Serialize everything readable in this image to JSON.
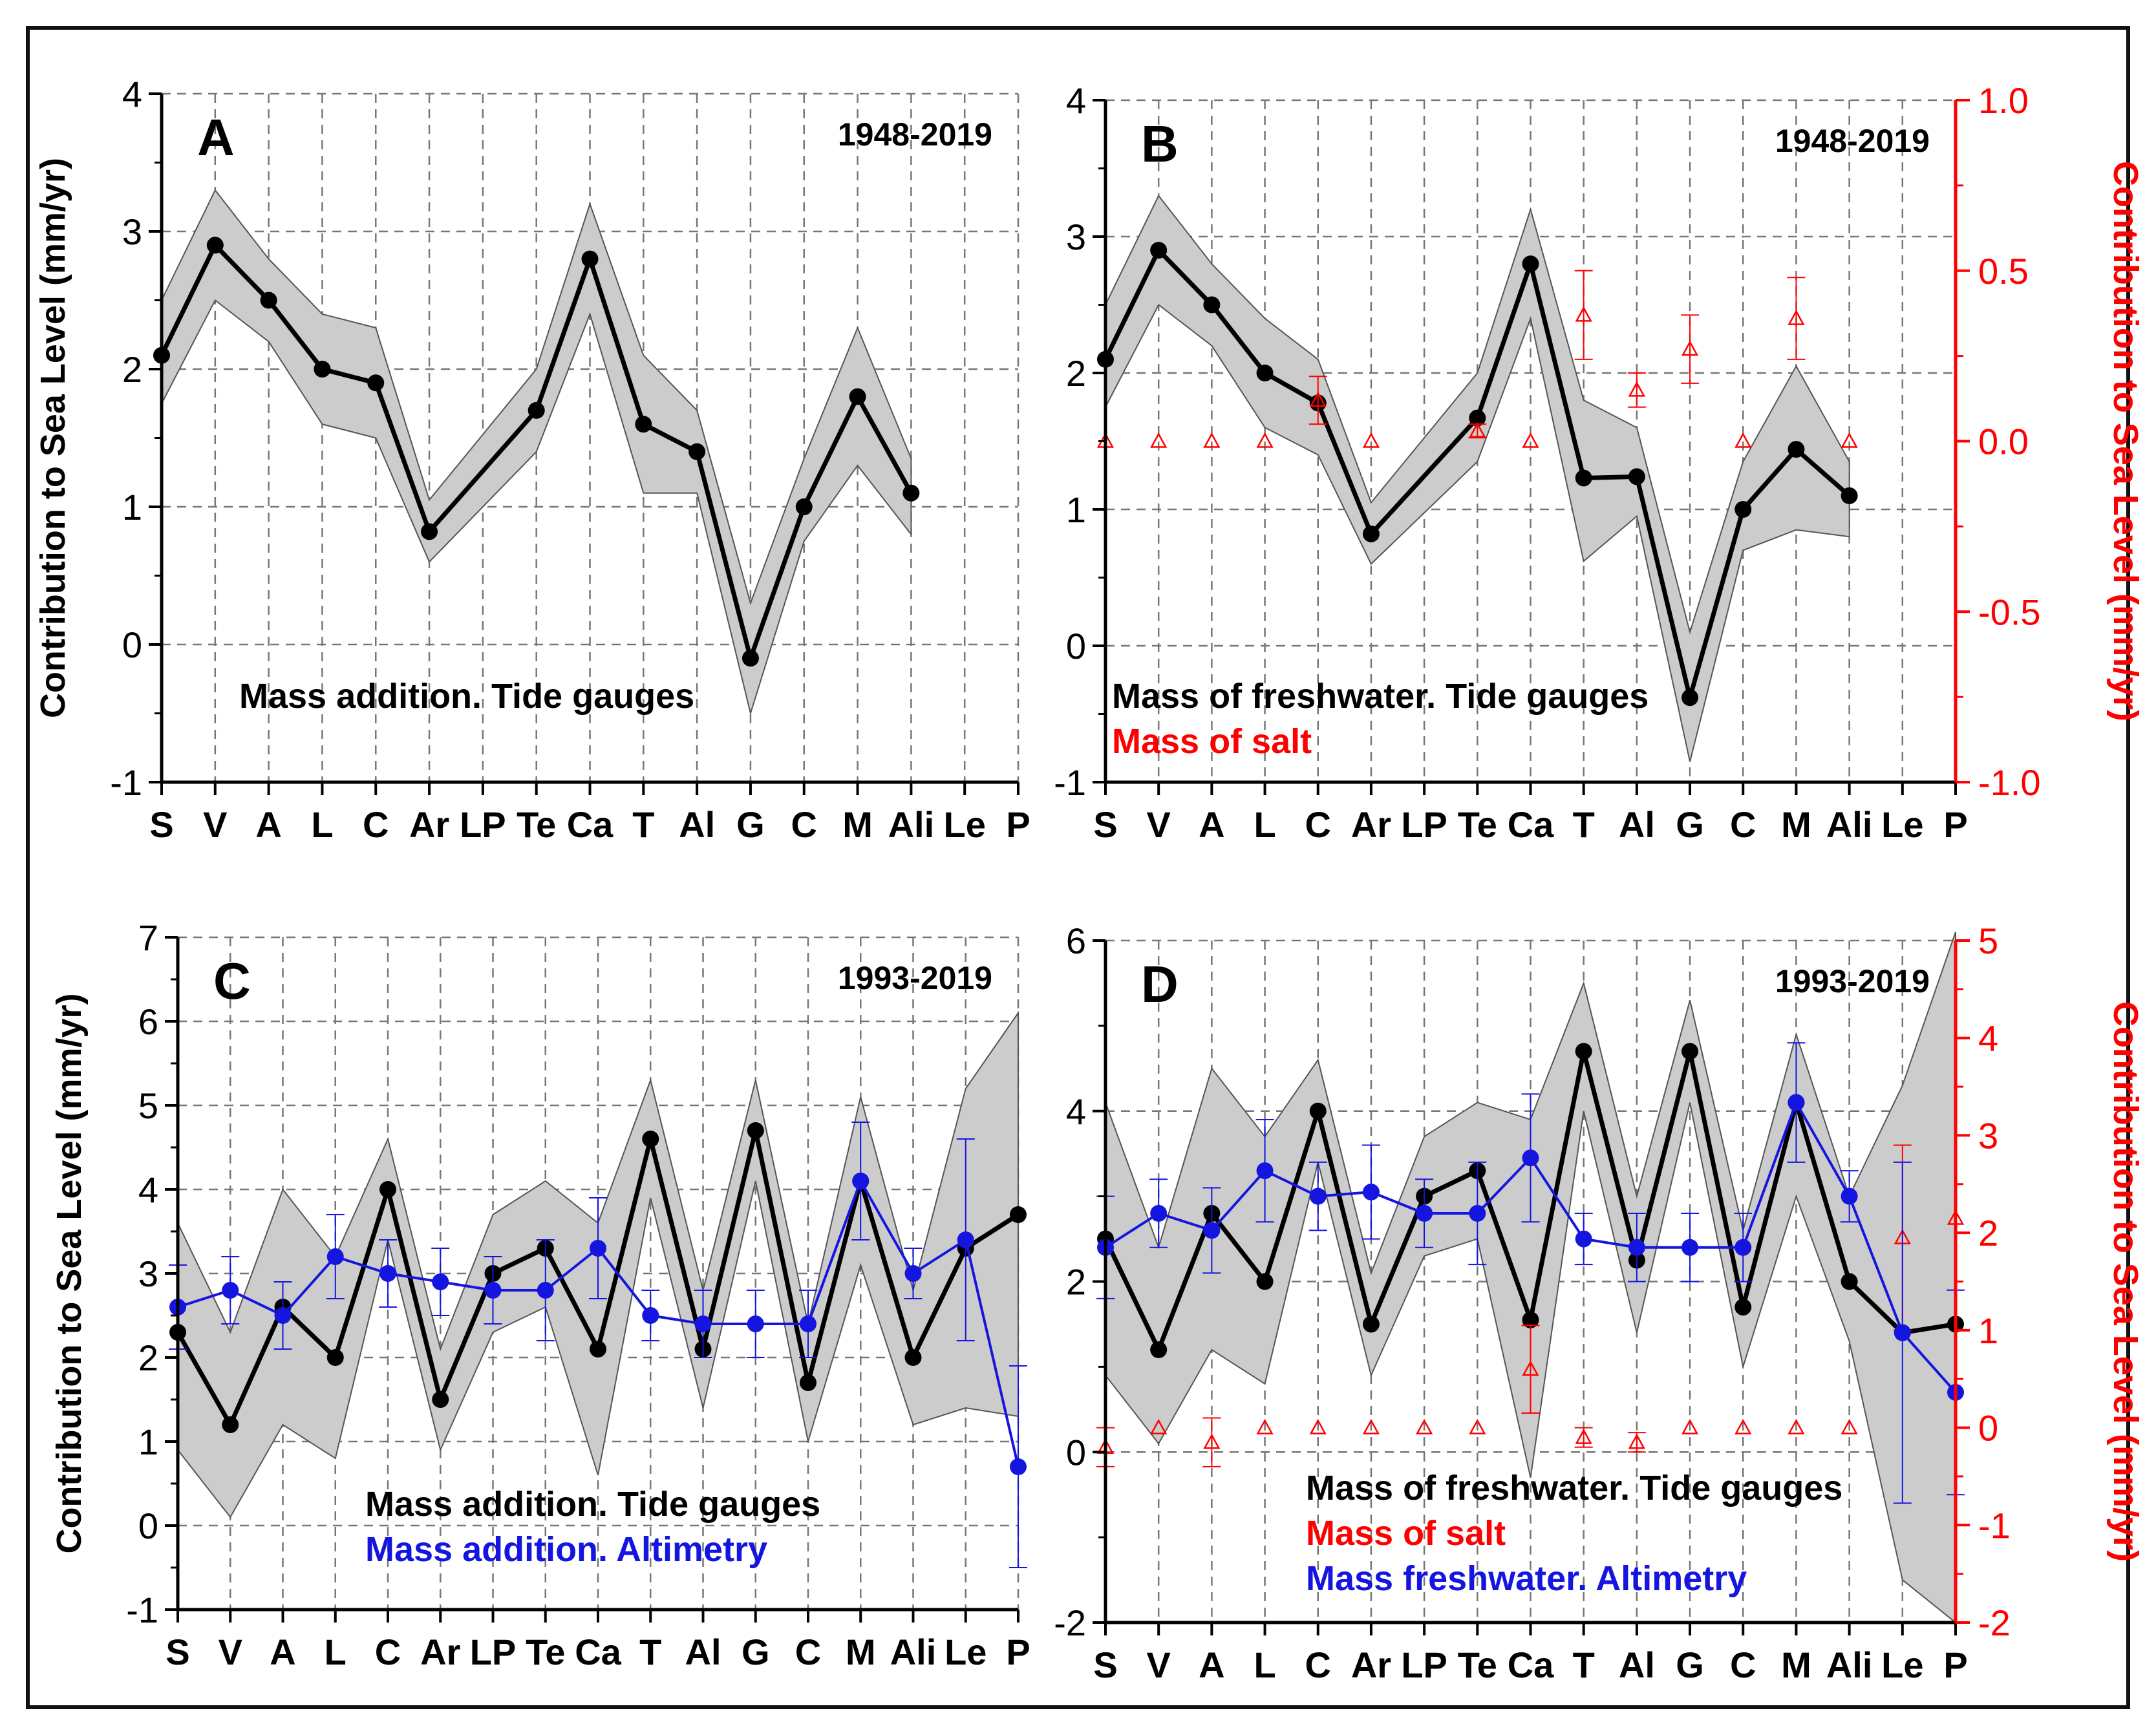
{
  "categories": [
    "S",
    "V",
    "A",
    "L",
    "C",
    "Ar",
    "LP",
    "Te",
    "Ca",
    "T",
    "Al",
    "G",
    "C",
    "M",
    "Ali",
    "Le",
    "P"
  ],
  "colors": {
    "black": "#000000",
    "red": "#ff0000",
    "blue": "#1515e0",
    "band": "#cccccc",
    "grid": "#777777"
  },
  "chart_data": [
    {
      "id": "A",
      "type": "line",
      "panel_label": "A",
      "period": "1948-2019",
      "ylabel": "Contribution to Sea Level (mm/yr)",
      "ylim": [
        -1,
        4
      ],
      "yticks": [
        -1,
        0,
        1,
        2,
        3,
        4
      ],
      "legend": [
        {
          "text": "Mass addition. Tide gauges",
          "color": "#000000"
        }
      ],
      "series": [
        {
          "name": "Mass addition. Tide gauges",
          "color": "#000000",
          "points": [
            [
              0,
              2.1
            ],
            [
              1,
              2.9
            ],
            [
              2,
              2.5
            ],
            [
              3,
              2.0
            ],
            [
              4,
              1.9
            ],
            [
              5,
              0.82
            ],
            [
              7,
              1.7
            ],
            [
              8,
              2.8
            ],
            [
              9,
              1.6
            ],
            [
              10,
              1.4
            ],
            [
              11,
              -0.1
            ],
            [
              12,
              1.0
            ],
            [
              13,
              1.8
            ],
            [
              14,
              1.1
            ]
          ],
          "band": [
            [
              0,
              1.75,
              2.5
            ],
            [
              1,
              2.5,
              3.3
            ],
            [
              2,
              2.2,
              2.8
            ],
            [
              3,
              1.6,
              2.4
            ],
            [
              4,
              1.5,
              2.3
            ],
            [
              5,
              0.6,
              1.05
            ],
            [
              7,
              1.4,
              2.0
            ],
            [
              8,
              2.4,
              3.2
            ],
            [
              9,
              1.1,
              2.1
            ],
            [
              10,
              1.1,
              1.7
            ],
            [
              11,
              -0.5,
              0.3
            ],
            [
              12,
              0.75,
              1.35
            ],
            [
              13,
              1.3,
              2.3
            ],
            [
              14,
              0.8,
              1.35
            ]
          ]
        }
      ]
    },
    {
      "id": "B",
      "type": "line",
      "panel_label": "B",
      "period": "1948-2019",
      "ylabel": "",
      "ylim": [
        -1,
        4
      ],
      "yticks": [
        -1,
        0,
        1,
        2,
        3,
        4
      ],
      "ylabel_right": "Contribution to Sea Level (mm/yr)",
      "ylim_right": [
        -1.0,
        1.0
      ],
      "yticks_right": [
        "-1.0",
        "-0.5",
        "0.0",
        "0.5",
        "1.0"
      ],
      "legend": [
        {
          "text": "Mass of freshwater. Tide gauges",
          "color": "#000000"
        },
        {
          "text": "Mass of salt",
          "color": "#ff0000"
        }
      ],
      "series": [
        {
          "name": "Mass of freshwater. Tide gauges",
          "color": "#000000",
          "points": [
            [
              0,
              2.1
            ],
            [
              1,
              2.9
            ],
            [
              2,
              2.5
            ],
            [
              3,
              2.0
            ],
            [
              4,
              1.78
            ],
            [
              5,
              0.82
            ],
            [
              7,
              1.67
            ],
            [
              8,
              2.8
            ],
            [
              9,
              1.23
            ],
            [
              10,
              1.24
            ],
            [
              11,
              -0.38
            ],
            [
              12,
              1.0
            ],
            [
              13,
              1.44
            ],
            [
              14,
              1.1
            ]
          ],
          "band": [
            [
              0,
              1.75,
              2.5
            ],
            [
              1,
              2.5,
              3.3
            ],
            [
              2,
              2.2,
              2.8
            ],
            [
              3,
              1.6,
              2.4
            ],
            [
              4,
              1.4,
              2.1
            ],
            [
              5,
              0.6,
              1.05
            ],
            [
              7,
              1.35,
              2.0
            ],
            [
              8,
              2.4,
              3.2
            ],
            [
              9,
              0.62,
              1.8
            ],
            [
              10,
              0.95,
              1.6
            ],
            [
              11,
              -0.85,
              0.1
            ],
            [
              12,
              0.7,
              1.35
            ],
            [
              13,
              0.85,
              2.05
            ],
            [
              14,
              0.8,
              1.35
            ]
          ]
        },
        {
          "name": "Mass of salt",
          "color": "#ff0000",
          "axis": "right",
          "points": [
            [
              0,
              0.0,
              0
            ],
            [
              1,
              0.0,
              0
            ],
            [
              2,
              0.0,
              0
            ],
            [
              3,
              0.0,
              0
            ],
            [
              4,
              0.12,
              0.07
            ],
            [
              5,
              0.0,
              0
            ],
            [
              7,
              0.03,
              0.02
            ],
            [
              8,
              0.0,
              0
            ],
            [
              9,
              0.37,
              0.13
            ],
            [
              10,
              0.15,
              0.05
            ],
            [
              11,
              0.27,
              0.1
            ],
            [
              12,
              0.0,
              0
            ],
            [
              13,
              0.36,
              0.12
            ],
            [
              14,
              0.0,
              0
            ]
          ]
        }
      ]
    },
    {
      "id": "C",
      "type": "line",
      "panel_label": "C",
      "period": "1993-2019",
      "ylabel": "Contribution to Sea Level (mm/yr)",
      "ylim": [
        -1,
        7
      ],
      "yticks": [
        -1,
        0,
        1,
        2,
        3,
        4,
        5,
        6,
        7
      ],
      "legend": [
        {
          "text": "Mass addition. Tide gauges",
          "color": "#000000"
        },
        {
          "text": "Mass addition. Altimetry",
          "color": "#1515e0"
        }
      ],
      "series": [
        {
          "name": "Mass addition. Tide gauges",
          "color": "#000000",
          "points": [
            [
              0,
              2.3
            ],
            [
              1,
              1.2
            ],
            [
              2,
              2.6
            ],
            [
              3,
              2.0
            ],
            [
              4,
              4.0
            ],
            [
              5,
              1.5
            ],
            [
              6,
              3.0
            ],
            [
              7,
              3.3
            ],
            [
              8,
              2.1
            ],
            [
              9,
              4.6
            ],
            [
              10,
              2.1
            ],
            [
              11,
              4.7
            ],
            [
              12,
              1.7
            ],
            [
              13,
              4.1
            ],
            [
              14,
              2.0
            ],
            [
              15,
              3.3
            ],
            [
              16,
              3.7
            ]
          ],
          "band": [
            [
              0,
              0.9,
              3.6
            ],
            [
              1,
              0.1,
              2.3
            ],
            [
              2,
              1.2,
              4.0
            ],
            [
              3,
              0.8,
              3.2
            ],
            [
              4,
              3.4,
              4.6
            ],
            [
              5,
              0.9,
              2.1
            ],
            [
              6,
              2.3,
              3.7
            ],
            [
              7,
              2.6,
              4.1
            ],
            [
              8,
              0.6,
              3.6
            ],
            [
              9,
              3.9,
              5.3
            ],
            [
              10,
              1.4,
              2.8
            ],
            [
              11,
              4.1,
              5.3
            ],
            [
              12,
              1.0,
              2.4
            ],
            [
              13,
              3.1,
              5.1
            ],
            [
              14,
              1.2,
              2.8
            ],
            [
              15,
              1.4,
              5.2
            ],
            [
              16,
              1.3,
              6.1
            ]
          ]
        },
        {
          "name": "Mass addition. Altimetry",
          "color": "#1515e0",
          "points": [
            [
              0,
              2.6,
              0.5
            ],
            [
              1,
              2.8,
              0.4
            ],
            [
              2,
              2.5,
              0.4
            ],
            [
              3,
              3.2,
              0.5
            ],
            [
              4,
              3.0,
              0.4
            ],
            [
              5,
              2.9,
              0.4
            ],
            [
              6,
              2.8,
              0.4
            ],
            [
              7,
              2.8,
              0.6
            ],
            [
              8,
              3.3,
              0.6
            ],
            [
              9,
              2.5,
              0.3
            ],
            [
              10,
              2.4,
              0.4
            ],
            [
              11,
              2.4,
              0.4
            ],
            [
              12,
              2.4,
              0.4
            ],
            [
              13,
              4.1,
              0.7
            ],
            [
              14,
              3.0,
              0.3
            ],
            [
              15,
              3.4,
              1.2
            ],
            [
              16,
              0.7,
              1.2
            ]
          ]
        }
      ]
    },
    {
      "id": "D",
      "type": "line",
      "panel_label": "D",
      "period": "1993-2019",
      "ylabel": "",
      "ylim": [
        -2,
        6
      ],
      "yticks": [
        -2,
        0,
        2,
        4,
        6
      ],
      "ylabel_right": "Contribution to Sea Level (mm/yr)",
      "ylim_right": [
        -2,
        5
      ],
      "yticks_right": [
        "-2",
        "-1",
        "0",
        "1",
        "2",
        "3",
        "4",
        "5"
      ],
      "legend": [
        {
          "text": "Mass of freshwater. Tide gauges",
          "color": "#000000"
        },
        {
          "text": "Mass of salt",
          "color": "#ff0000"
        },
        {
          "text": "Mass freshwater. Altimetry",
          "color": "#1515e0"
        }
      ],
      "series": [
        {
          "name": "Mass of freshwater. Tide gauges",
          "color": "#000000",
          "points": [
            [
              0,
              2.5
            ],
            [
              1,
              1.2
            ],
            [
              2,
              2.8
            ],
            [
              3,
              2.0
            ],
            [
              4,
              4.0
            ],
            [
              5,
              1.5
            ],
            [
              6,
              3.0
            ],
            [
              7,
              3.3
            ],
            [
              8,
              1.55
            ],
            [
              9,
              4.7
            ],
            [
              10,
              2.25
            ],
            [
              11,
              4.7
            ],
            [
              12,
              1.7
            ],
            [
              13,
              4.1
            ],
            [
              14,
              2.0
            ],
            [
              15,
              1.4
            ],
            [
              16,
              1.5
            ]
          ],
          "band": [
            [
              0,
              0.9,
              4.1
            ],
            [
              1,
              0.1,
              2.4
            ],
            [
              2,
              1.2,
              4.5
            ],
            [
              3,
              0.8,
              3.7
            ],
            [
              4,
              3.4,
              4.6
            ],
            [
              5,
              0.9,
              2.1
            ],
            [
              6,
              2.3,
              3.7
            ],
            [
              7,
              2.5,
              4.1
            ],
            [
              8,
              -0.3,
              3.9
            ],
            [
              9,
              4.0,
              5.5
            ],
            [
              10,
              1.4,
              3.0
            ],
            [
              11,
              4.1,
              5.3
            ],
            [
              12,
              1.0,
              2.6
            ],
            [
              13,
              3.0,
              4.9
            ],
            [
              14,
              1.3,
              3.0
            ],
            [
              15,
              -1.5,
              4.3
            ],
            [
              16,
              -2.0,
              6.1
            ]
          ]
        },
        {
          "name": "Mass of salt",
          "color": "#ff0000",
          "axis": "right",
          "points": [
            [
              0,
              -0.2,
              0.2
            ],
            [
              1,
              0.0,
              0
            ],
            [
              2,
              -0.15,
              0.25
            ],
            [
              3,
              0.0,
              0
            ],
            [
              4,
              0.0,
              0
            ],
            [
              5,
              0.0,
              0
            ],
            [
              6,
              0.0,
              0
            ],
            [
              7,
              0.0,
              0
            ],
            [
              8,
              0.6,
              0.45
            ],
            [
              9,
              -0.1,
              0.1
            ],
            [
              10,
              -0.15,
              0.1
            ],
            [
              11,
              0.0,
              0
            ],
            [
              12,
              0.0,
              0
            ],
            [
              13,
              0.0,
              0
            ],
            [
              14,
              0.0,
              0
            ],
            [
              15,
              1.95,
              0.95
            ],
            [
              16,
              2.15,
              0
            ]
          ]
        },
        {
          "name": "Mass freshwater. Altimetry",
          "color": "#1515e0",
          "points": [
            [
              0,
              2.4,
              0.6
            ],
            [
              1,
              2.8,
              0.4
            ],
            [
              2,
              2.6,
              0.5
            ],
            [
              3,
              3.3,
              0.6
            ],
            [
              4,
              3.0,
              0.4
            ],
            [
              5,
              3.05,
              0.55
            ],
            [
              6,
              2.8,
              0.4
            ],
            [
              7,
              2.8,
              0.6
            ],
            [
              8,
              3.45,
              0.75
            ],
            [
              9,
              2.5,
              0.3
            ],
            [
              10,
              2.4,
              0.4
            ],
            [
              11,
              2.4,
              0.4
            ],
            [
              12,
              2.4,
              0.4
            ],
            [
              13,
              4.1,
              0.7
            ],
            [
              14,
              3.0,
              0.3
            ],
            [
              15,
              1.4,
              2.0
            ],
            [
              16,
              0.7,
              1.2
            ]
          ]
        }
      ]
    }
  ]
}
